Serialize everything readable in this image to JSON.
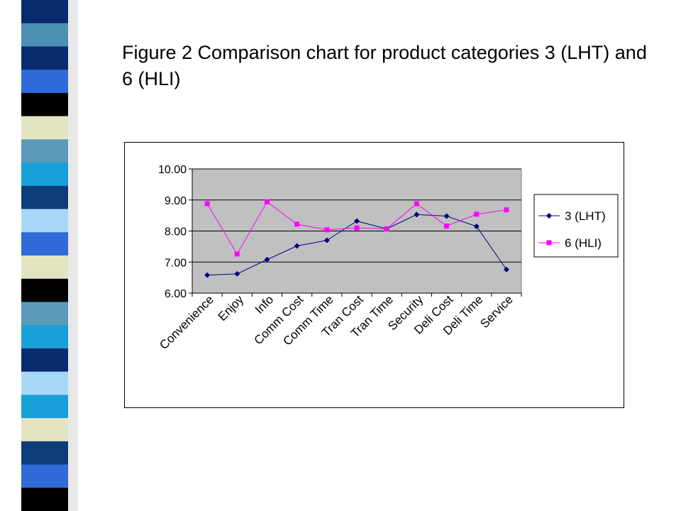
{
  "slide": {
    "title": "Figure 2 Comparison chart for product categories 3 (LHT) and 6 (HLI)"
  },
  "decor": {
    "stripe_colors": [
      "#0a2a6e",
      "#4b8fb4",
      "#0a2a6e",
      "#2e6bd8",
      "#000000",
      "#e4e4c0",
      "#5a9ab8",
      "#1aa0d8",
      "#0a3d7a",
      "#a8d8f8",
      "#2e6bd8",
      "#e4e4c0",
      "#000000",
      "#5a9ab8",
      "#1aa0d8",
      "#0a2a6e",
      "#a8d8f8",
      "#1aa0d8",
      "#e4e4c0",
      "#0a3d7a",
      "#2e6bd8",
      "#000000"
    ]
  },
  "chart_data": {
    "type": "line",
    "title": "",
    "xlabel": "",
    "ylabel": "",
    "categories": [
      "Convenience",
      "Enjoy",
      "Info",
      "Comm Cost",
      "Comm Time",
      "Tran Cost",
      "Tran Time",
      "Security",
      "Deli Cost",
      "Deli Time",
      "Service"
    ],
    "ylim": [
      6.0,
      10.0
    ],
    "yticks": [
      "6.00",
      "7.00",
      "8.00",
      "9.00",
      "10.00"
    ],
    "grid": true,
    "legend_position": "right",
    "plot_background": "#c0c0c0",
    "series": [
      {
        "name": "3 (LHT)",
        "color": "#000080",
        "marker": "diamond",
        "values": [
          6.58,
          6.62,
          7.08,
          7.52,
          7.7,
          8.32,
          8.07,
          8.53,
          8.48,
          8.15,
          6.76
        ]
      },
      {
        "name": "6 (HLI)",
        "color": "#ff00ff",
        "marker": "square",
        "values": [
          8.88,
          7.26,
          8.94,
          8.22,
          8.04,
          8.1,
          8.07,
          8.88,
          8.16,
          8.54,
          8.68
        ]
      }
    ]
  }
}
